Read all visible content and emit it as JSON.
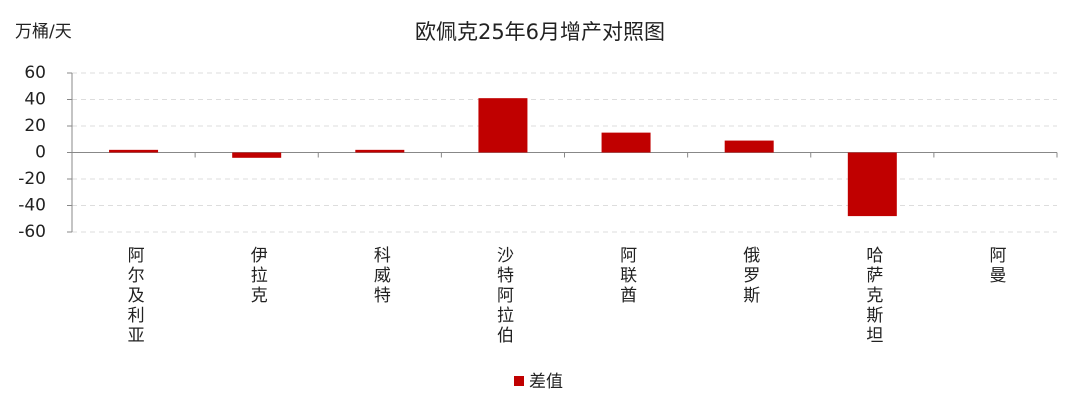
{
  "chart_data": {
    "type": "bar",
    "title": "欧佩克25年6月增产对照图",
    "y_label": "万桶/天",
    "categories": [
      "阿尔及利亚",
      "伊拉克",
      "科威特",
      "沙特阿拉伯",
      "阿联酋",
      "俄罗斯",
      "哈萨克斯坦",
      "阿曼"
    ],
    "series": [
      {
        "name": "差值",
        "color": "#c00000",
        "values": [
          2,
          -4,
          2,
          41,
          15,
          9,
          -48,
          0
        ]
      }
    ],
    "ylim": [
      -60,
      60
    ],
    "yticks": [
      -60,
      -40,
      -20,
      0,
      20,
      40,
      60
    ],
    "grid": true
  }
}
